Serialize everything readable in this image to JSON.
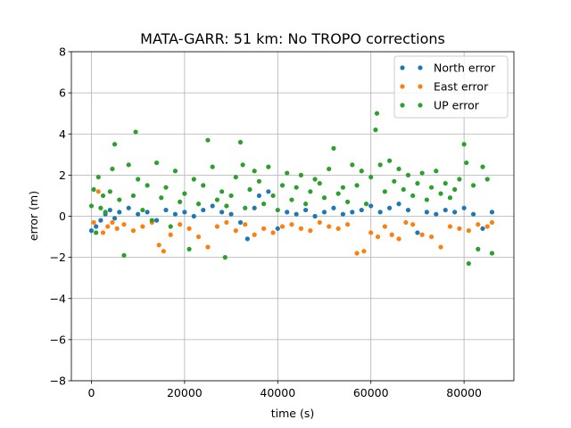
{
  "chart_data": {
    "type": "scatter",
    "title": "MATA-GARR: 51 km: No TROPO corrections",
    "xlabel": "time (s)",
    "ylabel": "error (m)",
    "xlim": [
      -4300,
      90700
    ],
    "ylim": [
      -8,
      8
    ],
    "xticks": [
      0,
      20000,
      40000,
      60000,
      80000
    ],
    "xtick_labels": [
      "0",
      "20000",
      "40000",
      "60000",
      "80000"
    ],
    "yticks": [
      -8,
      -6,
      -4,
      -2,
      0,
      2,
      4,
      6,
      8
    ],
    "ytick_labels": [
      "−8",
      "−6",
      "−4",
      "−2",
      "0",
      "2",
      "4",
      "6",
      "8"
    ],
    "grid": true,
    "legend_position": "top-right",
    "series": [
      {
        "name": "North error",
        "color": "#1f77b4",
        "x": [
          0,
          1000,
          2000,
          3000,
          4000,
          5000,
          6000,
          8000,
          10000,
          12000,
          14000,
          16000,
          18000,
          20000,
          22000,
          24000,
          26000,
          28000,
          30000,
          32000,
          33500,
          35000,
          36000,
          38000,
          40000,
          42000,
          44000,
          46000,
          48000,
          50000,
          52000,
          54000,
          56000,
          58000,
          60000,
          62000,
          64000,
          66000,
          68000,
          70000,
          72000,
          74000,
          76000,
          78000,
          80000,
          82000,
          84000,
          86000
        ],
        "y": [
          -0.7,
          -0.5,
          -0.2,
          0.1,
          0.3,
          -0.1,
          0.2,
          0.4,
          0.1,
          0.2,
          -0.2,
          0.3,
          0.1,
          0.2,
          0.0,
          0.3,
          0.5,
          0.2,
          0.1,
          -0.3,
          -1.1,
          0.4,
          1.0,
          1.2,
          -0.6,
          0.2,
          0.1,
          0.3,
          0.0,
          0.2,
          0.4,
          0.1,
          0.2,
          0.3,
          0.5,
          0.2,
          0.4,
          0.6,
          0.3,
          -0.8,
          0.2,
          0.1,
          0.3,
          0.2,
          0.4,
          0.1,
          -0.6,
          0.2
        ]
      },
      {
        "name": "East error",
        "color": "#ff7f0e",
        "x": [
          500,
          1500,
          2500,
          3500,
          4500,
          5500,
          7000,
          9000,
          11000,
          13000,
          14500,
          15500,
          17000,
          19000,
          21000,
          23000,
          25000,
          27000,
          29000,
          31000,
          33000,
          35000,
          37000,
          39000,
          41000,
          43000,
          45000,
          47000,
          49000,
          51000,
          53000,
          55000,
          57000,
          58500,
          60000,
          61500,
          63000,
          64500,
          66000,
          67500,
          69000,
          71000,
          73000,
          75000,
          77000,
          79000,
          81000,
          83000,
          85000,
          86000
        ],
        "y": [
          -0.3,
          1.2,
          -0.8,
          -0.5,
          -0.3,
          -0.6,
          -0.4,
          -0.7,
          -0.5,
          -0.3,
          -1.4,
          -1.7,
          -0.9,
          -0.4,
          -0.6,
          -1.0,
          -1.5,
          -0.5,
          -0.3,
          -0.7,
          -0.4,
          -0.9,
          -0.6,
          -0.8,
          -0.5,
          -0.4,
          -0.6,
          -0.7,
          -0.3,
          -0.5,
          -0.6,
          -0.4,
          -1.8,
          -1.7,
          -0.8,
          -1.0,
          -0.5,
          -0.9,
          -1.1,
          -0.3,
          -0.4,
          -0.9,
          -1.0,
          -1.5,
          -0.5,
          -0.6,
          -0.7,
          -0.4,
          -0.5,
          -0.3
        ]
      },
      {
        "name": "UP error",
        "color": "#2ca02c",
        "x": [
          0,
          500,
          1000,
          1500,
          2000,
          2500,
          3000,
          4000,
          4500,
          5000,
          6000,
          7000,
          8000,
          9000,
          9500,
          10000,
          11000,
          12000,
          13000,
          14000,
          15000,
          16000,
          17000,
          18000,
          19000,
          20000,
          21000,
          22000,
          23000,
          24000,
          25000,
          26000,
          27000,
          28000,
          28700,
          29000,
          30000,
          31000,
          32000,
          32500,
          33000,
          34000,
          35000,
          36000,
          37000,
          38000,
          39000,
          40000,
          41000,
          42000,
          43000,
          44000,
          45000,
          46000,
          47000,
          48000,
          49000,
          50000,
          51000,
          52000,
          53000,
          54000,
          55000,
          56000,
          57000,
          58000,
          59000,
          60000,
          61000,
          61300,
          62000,
          63000,
          64000,
          65000,
          66000,
          67000,
          68000,
          69000,
          70000,
          71000,
          72000,
          73000,
          74000,
          75000,
          76000,
          77000,
          78000,
          79000,
          80000,
          80500,
          81000,
          82000,
          83000,
          84000,
          85000,
          86000
        ],
        "y": [
          0.5,
          1.3,
          -0.8,
          1.9,
          0.4,
          1.0,
          0.2,
          1.2,
          2.3,
          3.5,
          0.8,
          -1.9,
          2.5,
          1.0,
          4.1,
          1.8,
          0.3,
          1.5,
          -0.2,
          2.6,
          0.9,
          1.4,
          -0.5,
          2.2,
          0.7,
          1.1,
          -1.6,
          1.8,
          0.6,
          1.5,
          3.7,
          2.4,
          0.8,
          1.2,
          -2.0,
          0.5,
          1.0,
          1.9,
          3.6,
          2.5,
          0.4,
          1.3,
          2.2,
          1.7,
          0.6,
          2.4,
          1.0,
          0.3,
          1.5,
          2.1,
          0.8,
          1.4,
          2.0,
          0.6,
          1.2,
          1.8,
          1.6,
          0.9,
          2.3,
          3.3,
          1.1,
          1.4,
          0.7,
          2.5,
          1.5,
          2.2,
          0.6,
          1.9,
          4.2,
          5.0,
          2.5,
          1.2,
          2.7,
          1.7,
          2.3,
          1.3,
          2.0,
          1.0,
          1.6,
          2.1,
          0.8,
          1.4,
          2.2,
          1.1,
          1.6,
          0.9,
          1.3,
          1.8,
          3.5,
          2.6,
          -2.3,
          1.5,
          -1.6,
          2.4,
          1.8,
          -1.8
        ]
      }
    ]
  }
}
